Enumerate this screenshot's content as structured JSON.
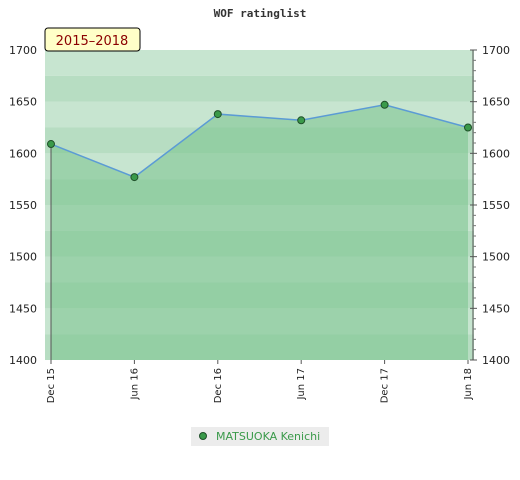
{
  "chart_data": {
    "type": "area",
    "title": "WOF ratinglist",
    "period_label": "2015–2018",
    "categories": [
      "Dec 15",
      "Jun 16",
      "Dec 16",
      "Jun 17",
      "Dec 17",
      "Jun 18"
    ],
    "series": [
      {
        "name": "MATSUOKA Kenichi",
        "values": [
          1609,
          1577,
          1638,
          1632,
          1647,
          1625
        ]
      }
    ],
    "ylim": [
      1400,
      1700
    ],
    "yticks": [
      1400,
      1450,
      1500,
      1550,
      1600,
      1650,
      1700
    ],
    "grid": true,
    "legend_position": "bottom-center",
    "colors": {
      "line": "#5b9bd5",
      "marker": "#3a9a4a",
      "fill": "#78c28c",
      "legend_text": "#3a9a4a",
      "period_text": "#8b0000",
      "period_bg": "#ffffc8"
    }
  }
}
